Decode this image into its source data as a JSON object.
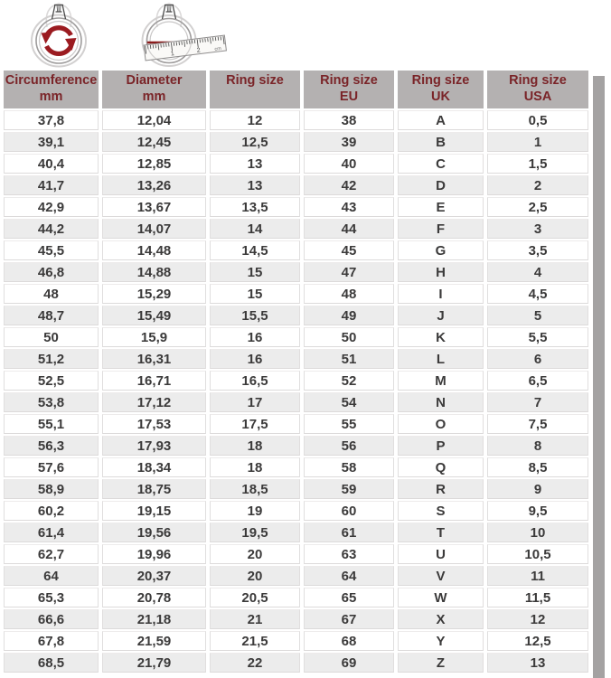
{
  "illustrations": {
    "circumference_ring": "ring-with-rotation-arrows-icon",
    "diameter_ring": "ring-with-diameter-ruler-icon",
    "ruler_labels": {
      "one": "1",
      "two": "2",
      "unit": "cm"
    }
  },
  "colors": {
    "header_bg": "#b4b1b1",
    "header_text": "#7a2428",
    "row_bg": "#ffffff",
    "row_alt_bg": "#ececec",
    "cell_text": "#3b3a3a",
    "accent_red": "#9b1b20",
    "diameter_line_red": "#8b1a1a",
    "right_shadow": "#a4a2a2"
  },
  "chart_data": {
    "type": "table",
    "columns": [
      {
        "line1": "Circumference",
        "line2": "mm"
      },
      {
        "line1": "Diameter",
        "line2": "mm"
      },
      {
        "line1": "Ring size",
        "line2": ""
      },
      {
        "line1": "Ring size",
        "line2": "EU"
      },
      {
        "line1": "Ring size",
        "line2": "UK"
      },
      {
        "line1": "Ring size",
        "line2": "USA"
      }
    ],
    "rows": [
      [
        "37,8",
        "12,04",
        "12",
        "38",
        "A",
        "0,5"
      ],
      [
        "39,1",
        "12,45",
        "12,5",
        "39",
        "B",
        "1"
      ],
      [
        "40,4",
        "12,85",
        "13",
        "40",
        "C",
        "1,5"
      ],
      [
        "41,7",
        "13,26",
        "13",
        "42",
        "D",
        "2"
      ],
      [
        "42,9",
        "13,67",
        "13,5",
        "43",
        "E",
        "2,5"
      ],
      [
        "44,2",
        "14,07",
        "14",
        "44",
        "F",
        "3"
      ],
      [
        "45,5",
        "14,48",
        "14,5",
        "45",
        "G",
        "3,5"
      ],
      [
        "46,8",
        "14,88",
        "15",
        "47",
        "H",
        "4"
      ],
      [
        "48",
        "15,29",
        "15",
        "48",
        "I",
        "4,5"
      ],
      [
        "48,7",
        "15,49",
        "15,5",
        "49",
        "J",
        "5"
      ],
      [
        "50",
        "15,9",
        "16",
        "50",
        "K",
        "5,5"
      ],
      [
        "51,2",
        "16,31",
        "16",
        "51",
        "L",
        "6"
      ],
      [
        "52,5",
        "16,71",
        "16,5",
        "52",
        "M",
        "6,5"
      ],
      [
        "53,8",
        "17,12",
        "17",
        "54",
        "N",
        "7"
      ],
      [
        "55,1",
        "17,53",
        "17,5",
        "55",
        "O",
        "7,5"
      ],
      [
        "56,3",
        "17,93",
        "18",
        "56",
        "P",
        "8"
      ],
      [
        "57,6",
        "18,34",
        "18",
        "58",
        "Q",
        "8,5"
      ],
      [
        "58,9",
        "18,75",
        "18,5",
        "59",
        "R",
        "9"
      ],
      [
        "60,2",
        "19,15",
        "19",
        "60",
        "S",
        "9,5"
      ],
      [
        "61,4",
        "19,56",
        "19,5",
        "61",
        "T",
        "10"
      ],
      [
        "62,7",
        "19,96",
        "20",
        "63",
        "U",
        "10,5"
      ],
      [
        "64",
        "20,37",
        "20",
        "64",
        "V",
        "11"
      ],
      [
        "65,3",
        "20,78",
        "20,5",
        "65",
        "W",
        "11,5"
      ],
      [
        "66,6",
        "21,18",
        "21",
        "67",
        "X",
        "12"
      ],
      [
        "67,8",
        "21,59",
        "21,5",
        "68",
        "Y",
        "12,5"
      ],
      [
        "68,5",
        "21,79",
        "22",
        "69",
        "Z",
        "13"
      ]
    ]
  }
}
